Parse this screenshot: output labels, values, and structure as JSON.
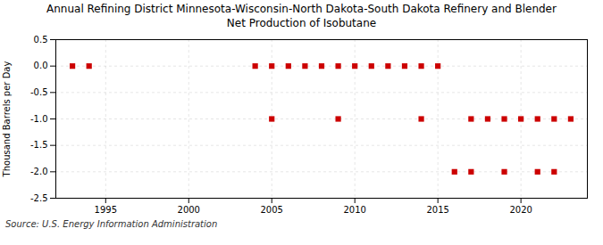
{
  "chart_data": {
    "type": "scatter",
    "title": "Annual Refining District Minnesota-Wisconsin-North Dakota-South Dakota Refinery and Blender\nNet Production of Isobutane",
    "ylabel": "Thousand Barrels per Day",
    "source": "Source: U.S. Energy Information Administration",
    "x": [
      1993,
      1994,
      2004,
      2005,
      2005,
      2006,
      2007,
      2008,
      2009,
      2009,
      2010,
      2011,
      2012,
      2013,
      2014,
      2014,
      2015,
      2016,
      2017,
      2017,
      2018,
      2019,
      2019,
      2020,
      2021,
      2021,
      2022,
      2022,
      2023
    ],
    "values": [
      0.0,
      0.0,
      0.0,
      0.0,
      -1.0,
      0.0,
      0.0,
      0.0,
      0.0,
      -1.0,
      0.0,
      0.0,
      0.0,
      0.0,
      0.0,
      -1.0,
      0.0,
      -2.0,
      -2.0,
      -1.0,
      -1.0,
      -2.0,
      -1.0,
      -1.0,
      -2.0,
      -1.0,
      -1.0,
      -2.0,
      -1.0
    ],
    "color": "#cc0000",
    "marker": "square",
    "xlim": [
      1992,
      2024
    ],
    "ylim": [
      -2.5,
      0.5
    ],
    "xticks": [
      1995,
      2000,
      2005,
      2010,
      2015,
      2020
    ],
    "yticks": [
      0.5,
      {
        "value": 0,
        "label": "0.0"
      },
      -0.5,
      {
        "value": -1,
        "label": "-1.0"
      },
      -1.5,
      {
        "value": -2,
        "label": "-2.0"
      },
      -2.5
    ],
    "grid": true
  }
}
